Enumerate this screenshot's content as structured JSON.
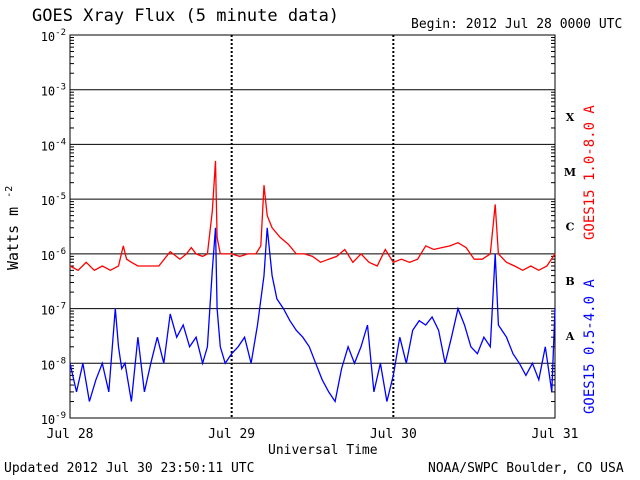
{
  "header": {
    "title": "GOES Xray Flux (5 minute data)",
    "begin": "Begin:  2012 Jul 28 0000 UTC"
  },
  "footer": {
    "updated": "Updated 2012 Jul 30 23:50:11 UTC",
    "source": "NOAA/SWPC Boulder, CO USA"
  },
  "chart_data": {
    "type": "line",
    "title": "GOES Xray Flux (5 minute data)",
    "xlabel": "Universal Time",
    "ylabel": "Watts m",
    "ylabel_superscript": "-2",
    "yscale": "log",
    "ylim": [
      1e-09,
      0.01
    ],
    "xlim": [
      0,
      3
    ],
    "grid": true,
    "x_ticks": [
      {
        "day": 0,
        "label": "Jul 28"
      },
      {
        "day": 1,
        "label": "Jul 29"
      },
      {
        "day": 2,
        "label": "Jul 30"
      },
      {
        "day": 3,
        "label": "Jul 31"
      }
    ],
    "y_ticks": [
      {
        "exp": -2,
        "base": "10",
        "sup": "-2"
      },
      {
        "exp": -3,
        "base": "10",
        "sup": "-3"
      },
      {
        "exp": -4,
        "base": "10",
        "sup": "-4"
      },
      {
        "exp": -5,
        "base": "10",
        "sup": "-5"
      },
      {
        "exp": -6,
        "base": "10",
        "sup": "-6"
      },
      {
        "exp": -7,
        "base": "10",
        "sup": "-7"
      },
      {
        "exp": -8,
        "base": "10",
        "sup": "-8"
      },
      {
        "exp": -9,
        "base": "10",
        "sup": "-9"
      }
    ],
    "flare_classes": [
      {
        "label": "X",
        "exp": -3.5
      },
      {
        "label": "M",
        "exp": -4.5
      },
      {
        "label": "C",
        "exp": -5.5
      },
      {
        "label": "B",
        "exp": -6.5
      },
      {
        "label": "A",
        "exp": -7.5
      }
    ],
    "series": [
      {
        "name": "GOES15 1.0-8.0 A",
        "color": "#ff0000",
        "x": [
          0.0,
          0.05,
          0.1,
          0.15,
          0.2,
          0.25,
          0.3,
          0.33,
          0.35,
          0.38,
          0.42,
          0.48,
          0.55,
          0.62,
          0.68,
          0.72,
          0.75,
          0.78,
          0.82,
          0.85,
          0.88,
          0.9,
          0.91,
          0.93,
          0.96,
          1.0,
          1.05,
          1.1,
          1.15,
          1.18,
          1.2,
          1.22,
          1.25,
          1.3,
          1.35,
          1.4,
          1.45,
          1.5,
          1.55,
          1.6,
          1.65,
          1.7,
          1.75,
          1.8,
          1.85,
          1.9,
          1.95,
          2.0,
          2.05,
          2.1,
          2.15,
          2.2,
          2.25,
          2.3,
          2.35,
          2.4,
          2.45,
          2.5,
          2.55,
          2.6,
          2.63,
          2.65,
          2.7,
          2.75,
          2.8,
          2.85,
          2.9,
          2.95,
          3.0
        ],
        "y": [
          6e-07,
          5e-07,
          7e-07,
          5e-07,
          6e-07,
          5e-07,
          6e-07,
          1.4e-06,
          8e-07,
          7e-07,
          6e-07,
          6e-07,
          6e-07,
          1.1e-06,
          8e-07,
          1e-06,
          1.3e-06,
          1e-06,
          9e-07,
          1e-06,
          6e-06,
          5e-05,
          2e-06,
          1e-06,
          1e-06,
          1e-06,
          9e-07,
          1e-06,
          1e-06,
          1.4e-06,
          1.8e-05,
          5e-06,
          3e-06,
          2e-06,
          1.5e-06,
          1e-06,
          1e-06,
          9e-07,
          7e-07,
          8e-07,
          9e-07,
          1.2e-06,
          7e-07,
          1e-06,
          7e-07,
          6e-07,
          1.2e-06,
          7e-07,
          8e-07,
          7e-07,
          8e-07,
          1.4e-06,
          1.2e-06,
          1.3e-06,
          1.4e-06,
          1.6e-06,
          1.3e-06,
          8e-07,
          8e-07,
          1e-06,
          8e-06,
          1e-06,
          7e-07,
          6e-07,
          5e-07,
          6e-07,
          5e-07,
          6e-07,
          1e-06
        ]
      },
      {
        "name": "GOES15 0.5-4.0 A",
        "color": "#0000ff",
        "x": [
          0.0,
          0.04,
          0.08,
          0.12,
          0.16,
          0.2,
          0.24,
          0.28,
          0.3,
          0.32,
          0.34,
          0.38,
          0.42,
          0.46,
          0.5,
          0.54,
          0.58,
          0.62,
          0.66,
          0.7,
          0.74,
          0.78,
          0.82,
          0.85,
          0.88,
          0.9,
          0.91,
          0.93,
          0.96,
          1.0,
          1.04,
          1.08,
          1.12,
          1.16,
          1.2,
          1.22,
          1.25,
          1.28,
          1.32,
          1.36,
          1.4,
          1.44,
          1.48,
          1.52,
          1.56,
          1.6,
          1.64,
          1.68,
          1.72,
          1.76,
          1.8,
          1.84,
          1.88,
          1.92,
          1.96,
          2.0,
          2.04,
          2.08,
          2.12,
          2.16,
          2.2,
          2.24,
          2.28,
          2.32,
          2.36,
          2.4,
          2.44,
          2.48,
          2.52,
          2.56,
          2.6,
          2.63,
          2.65,
          2.7,
          2.74,
          2.78,
          2.82,
          2.86,
          2.9,
          2.94,
          2.98,
          3.0
        ],
        "y": [
          1e-08,
          3e-09,
          1e-08,
          2e-09,
          5e-09,
          1e-08,
          3e-09,
          1e-07,
          2e-08,
          8e-09,
          1e-08,
          2e-09,
          3e-08,
          3e-09,
          1e-08,
          3e-08,
          1e-08,
          8e-08,
          3e-08,
          5e-08,
          2e-08,
          3e-08,
          1e-08,
          2e-08,
          5e-07,
          3e-06,
          1e-07,
          2e-08,
          1e-08,
          1.5e-08,
          2e-08,
          3e-08,
          1e-08,
          5e-08,
          4e-07,
          3e-06,
          4e-07,
          1.5e-07,
          1e-07,
          6e-08,
          4e-08,
          3e-08,
          2e-08,
          1e-08,
          5e-09,
          3e-09,
          2e-09,
          8e-09,
          2e-08,
          1e-08,
          2e-08,
          5e-08,
          3e-09,
          1e-08,
          2e-09,
          6e-09,
          3e-08,
          1e-08,
          4e-08,
          6e-08,
          5e-08,
          7e-08,
          4e-08,
          1e-08,
          3e-08,
          1e-07,
          5e-08,
          2e-08,
          1.5e-08,
          3e-08,
          2e-08,
          1e-06,
          5e-08,
          3e-08,
          1.5e-08,
          1e-08,
          6e-09,
          1e-08,
          5e-09,
          2e-08,
          3e-09,
          1e-07
        ]
      }
    ]
  }
}
